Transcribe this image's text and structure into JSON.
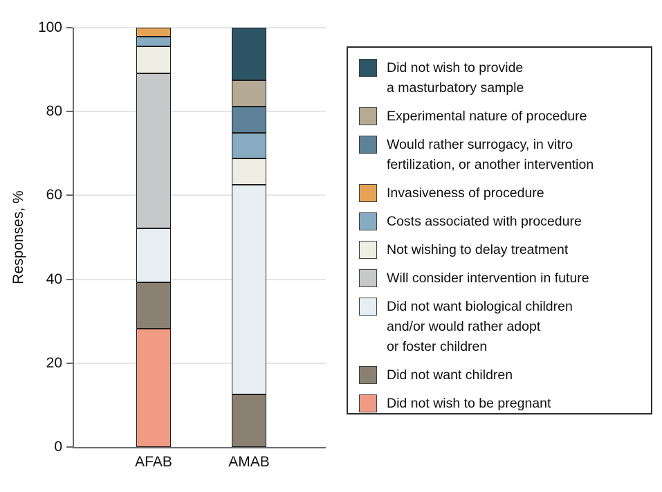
{
  "chart_data": {
    "type": "bar",
    "variant": "stacked-vertical",
    "title": "",
    "ylabel": "Responses, %",
    "xlabel": "",
    "ylim": [
      0,
      100
    ],
    "yticks": [
      0,
      20,
      40,
      60,
      80,
      100
    ],
    "grid": "horizontal, at 20/40/60/80/100",
    "legend_position": "right, boxed",
    "categories": [
      "AFAB",
      "AMAB"
    ],
    "series": [
      {
        "name": "Did not wish to be pregnant",
        "color": "#f19b85",
        "values": [
          28.3,
          0
        ]
      },
      {
        "name": "Did not want children",
        "color": "#8a8173",
        "values": [
          10.9,
          12.5
        ]
      },
      {
        "name": "Did not want biological children and/or would rather adopt or foster children",
        "color": "#e8eff3",
        "values": [
          13.0,
          50.0
        ]
      },
      {
        "name": "Will consider intervention in future",
        "color": "#c7c8ca",
        "values": [
          36.9,
          0
        ]
      },
      {
        "name": "Not wishing to delay treatment",
        "color": "#efeee2",
        "values": [
          6.5,
          6.25
        ]
      },
      {
        "name": "Costs associated with procedure",
        "color": "#87abc0",
        "values": [
          2.2,
          6.25
        ]
      },
      {
        "name": "Invasiveness of procedure",
        "color": "#e5a455",
        "values": [
          2.2,
          0
        ]
      },
      {
        "name": "Would rather surrogacy, in vitro fertilization, or another intervention",
        "color": "#5d8196",
        "values": [
          0,
          6.25
        ]
      },
      {
        "name": "Experimental nature of procedure",
        "color": "#b5aa95",
        "values": [
          0,
          6.25
        ]
      },
      {
        "name": "Did not wish to provide a masturbatory sample",
        "color": "#2e5565",
        "values": [
          0,
          12.5
        ]
      }
    ],
    "legend": [
      {
        "label": "Did not wish to provide\na masturbatory sample",
        "color": "#2e5565"
      },
      {
        "label": "Experimental nature of procedure",
        "color": "#b5aa95"
      },
      {
        "label": "Would rather surrogacy, in vitro\nfertilization, or another intervention",
        "color": "#5d8196"
      },
      {
        "label": "Invasiveness of procedure",
        "color": "#e5a455"
      },
      {
        "label": "Costs associated with procedure",
        "color": "#87abc0"
      },
      {
        "label": "Not wishing to delay treatment",
        "color": "#efeee2"
      },
      {
        "label": "Will consider intervention in future",
        "color": "#c7c8ca"
      },
      {
        "label": "Did not want biological children\nand/or would rather adopt\nor foster children",
        "color": "#e8eff3"
      },
      {
        "label": "Did not want children",
        "color": "#8a8173"
      },
      {
        "label": "Did not wish to be pregnant",
        "color": "#f19b85"
      }
    ]
  },
  "colors": {
    "axis": "#6b6b6b",
    "gridline": "#e5e5e5",
    "segment_border": "#1c1c1c",
    "text": "#111111",
    "legend_border": "#2b2b2b"
  }
}
